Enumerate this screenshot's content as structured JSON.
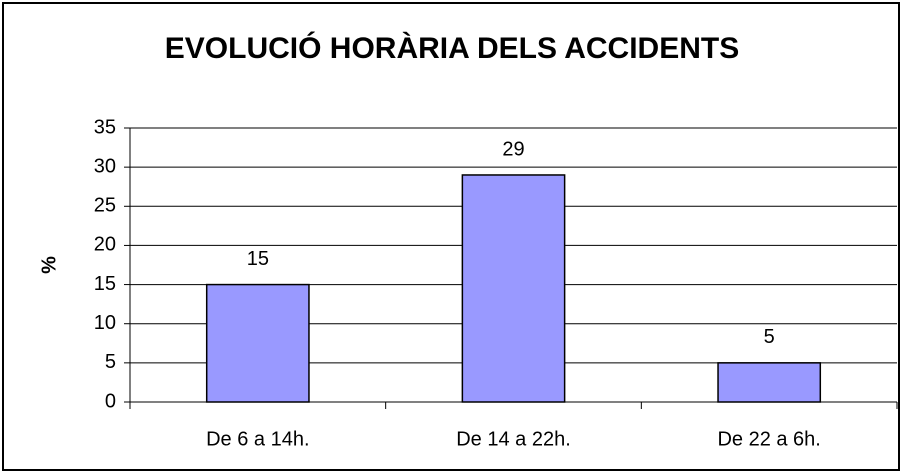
{
  "chart_data": {
    "type": "bar",
    "title": "EVOLUCIÓ HORÀRIA DELS ACCIDENTS",
    "y_label": "%",
    "categories": [
      "De 6 a 14h.",
      "De 14 a 22h.",
      "De 22 a 6h."
    ],
    "values": [
      15,
      29,
      5
    ],
    "color": "#9999ff",
    "ylim": [
      0,
      35
    ],
    "yticks": [
      0,
      5,
      10,
      15,
      20,
      25,
      30,
      35
    ],
    "grid": true
  }
}
